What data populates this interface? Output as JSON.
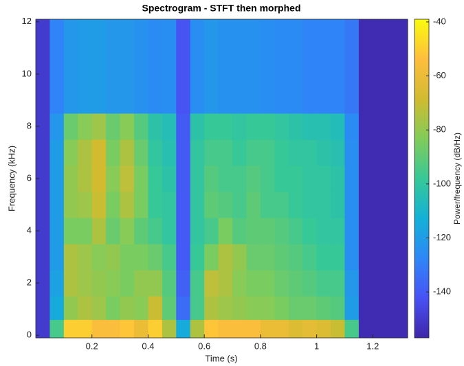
{
  "chart_data": {
    "type": "heatmap",
    "title": "Spectrogram - STFT then morphed",
    "x_label": "Time (s)",
    "y_label": "Frequency (kHz)",
    "colorbar_label": "Power/frequency (dB/Hz)",
    "colormap": "parula",
    "x_bins": [
      0,
      0.05,
      0.1,
      0.15,
      0.2,
      0.25,
      0.3,
      0.35,
      0.4,
      0.45,
      0.5,
      0.55,
      0.6,
      0.65,
      0.7,
      0.75,
      0.8,
      0.85,
      0.9,
      0.95,
      1.0,
      1.05,
      1.1,
      1.15,
      1.2,
      1.25,
      1.324
    ],
    "y_bins": [
      -0.1,
      0.6,
      1.5,
      2.5,
      3.5,
      4.5,
      5.5,
      6.5,
      7.5,
      8.5,
      12.1
    ],
    "z": [
      [
        -150,
        -95,
        -50,
        -50,
        -55,
        -55,
        -52,
        -60,
        -50,
        -75,
        -115,
        -75,
        -52,
        -55,
        -55,
        -55,
        -60,
        -60,
        -65,
        -62,
        -65,
        -70,
        -95,
        -155,
        -155,
        -155
      ],
      [
        -150,
        -115,
        -80,
        -75,
        -78,
        -85,
        -80,
        -82,
        -70,
        -90,
        -135,
        -95,
        -75,
        -78,
        -80,
        -82,
        -82,
        -85,
        -88,
        -88,
        -90,
        -92,
        -120,
        -155,
        -155,
        -155
      ],
      [
        -150,
        -118,
        -75,
        -78,
        -80,
        -82,
        -85,
        -80,
        -80,
        -92,
        -138,
        -95,
        -72,
        -75,
        -82,
        -85,
        -85,
        -88,
        -90,
        -92,
        -95,
        -95,
        -122,
        -155,
        -155,
        -155
      ],
      [
        -150,
        -120,
        -75,
        -78,
        -82,
        -80,
        -85,
        -85,
        -88,
        -95,
        -140,
        -98,
        -85,
        -75,
        -80,
        -88,
        -88,
        -90,
        -92,
        -95,
        -98,
        -98,
        -125,
        -155,
        -155,
        -155
      ],
      [
        -150,
        -120,
        -85,
        -85,
        -75,
        -88,
        -82,
        -90,
        -95,
        -100,
        -140,
        -100,
        -95,
        -85,
        -92,
        -90,
        -90,
        -92,
        -95,
        -98,
        -100,
        -100,
        -125,
        -155,
        -155,
        -155
      ],
      [
        -150,
        -120,
        -80,
        -78,
        -70,
        -85,
        -75,
        -85,
        -98,
        -100,
        -140,
        -100,
        -90,
        -92,
        -95,
        -90,
        -95,
        -95,
        -98,
        -100,
        -100,
        -102,
        -125,
        -155,
        -155,
        -155
      ],
      [
        -150,
        -120,
        -80,
        -75,
        -68,
        -82,
        -72,
        -85,
        -98,
        -102,
        -140,
        -100,
        -92,
        -95,
        -95,
        -92,
        -95,
        -98,
        -98,
        -100,
        -100,
        -102,
        -125,
        -155,
        -155,
        -155
      ],
      [
        -150,
        -120,
        -82,
        -75,
        -68,
        -85,
        -75,
        -88,
        -100,
        -104,
        -140,
        -100,
        -95,
        -95,
        -98,
        -95,
        -95,
        -98,
        -100,
        -100,
        -102,
        -104,
        -125,
        -155,
        -155,
        -155
      ],
      [
        -150,
        -122,
        -88,
        -82,
        -78,
        -88,
        -82,
        -92,
        -102,
        -105,
        -140,
        -102,
        -98,
        -98,
        -100,
        -98,
        -98,
        -100,
        -102,
        -104,
        -104,
        -106,
        -126,
        -155,
        -155,
        -155
      ],
      [
        -150,
        -128,
        -122,
        -120,
        -120,
        -122,
        -122,
        -124,
        -126,
        -125,
        -142,
        -125,
        -122,
        -124,
        -124,
        -124,
        -125,
        -126,
        -126,
        -128,
        -128,
        -128,
        -132,
        -155,
        -155,
        -155
      ]
    ],
    "xlim": [
      0,
      1.324
    ],
    "ylim": [
      -0.1,
      12.1
    ],
    "clim": [
      -157,
      -39
    ],
    "xticks": [
      0.2,
      0.4,
      0.6,
      0.8,
      1,
      1.2
    ],
    "yticks": [
      0,
      2,
      4,
      6,
      8,
      10,
      12
    ],
    "cticks": [
      -140,
      -120,
      -100,
      -80,
      -60,
      -40
    ]
  }
}
